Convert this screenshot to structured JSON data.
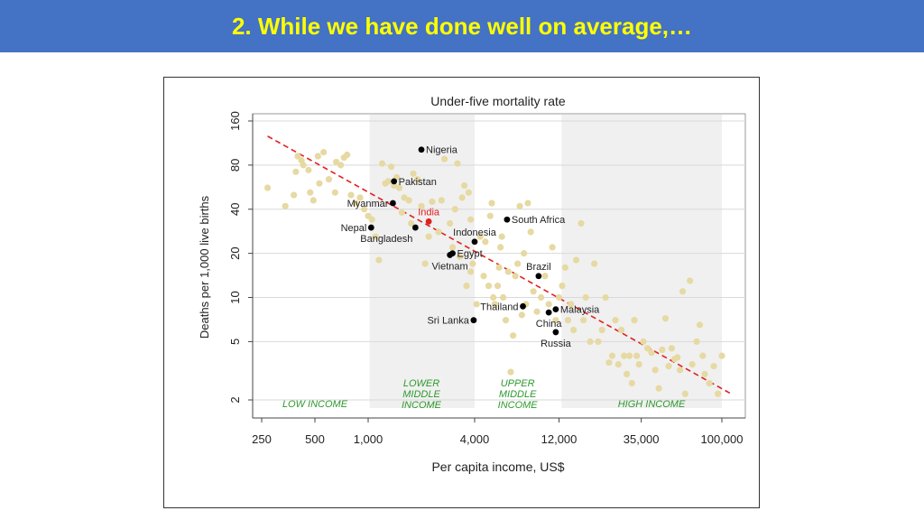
{
  "slide": {
    "title": "2.  While we have done well on average,…"
  },
  "chart_data": {
    "type": "scatter",
    "title": "Under-five mortality rate",
    "xlabel": "Per capita income, US$",
    "ylabel": "Deaths per 1,000 live births",
    "x_scale": "log",
    "y_scale": "log",
    "xlim": [
      220,
      130000
    ],
    "ylim": [
      1.8,
      175
    ],
    "x_ticks": [
      {
        "value": 250,
        "label": "250"
      },
      {
        "value": 500,
        "label": "500"
      },
      {
        "value": 1000,
        "label": "1,000"
      },
      {
        "value": 4000,
        "label": "4,000"
      },
      {
        "value": 12000,
        "label": "12,000"
      },
      {
        "value": 35000,
        "label": "35,000"
      },
      {
        "value": 100000,
        "label": "100,000"
      }
    ],
    "y_ticks": [
      {
        "value": 2,
        "label": "2"
      },
      {
        "value": 5,
        "label": "5"
      },
      {
        "value": 10,
        "label": "10"
      },
      {
        "value": 20,
        "label": "20"
      },
      {
        "value": 40,
        "label": "40"
      },
      {
        "value": 80,
        "label": "80"
      },
      {
        "value": 160,
        "label": "160"
      }
    ],
    "grid": true,
    "income_bands": [
      {
        "from": 1020,
        "to": 4000,
        "label_lines": [
          "LOWER",
          "MIDDLE",
          "INCOME"
        ]
      },
      {
        "from": 12400,
        "to": 100000,
        "label_lines": []
      }
    ],
    "band_labels": [
      {
        "text_lines": [
          "LOW INCOME"
        ],
        "x": 500,
        "y": 2
      },
      {
        "text_lines": [
          "LOWER",
          "MIDDLE",
          "INCOME"
        ],
        "x": 2000,
        "y": 2.3
      },
      {
        "text_lines": [
          "UPPER",
          "MIDDLE",
          "INCOME"
        ],
        "x": 7000,
        "y": 2.3
      },
      {
        "text_lines": [
          "HIGH INCOME"
        ],
        "x": 40000,
        "y": 2
      }
    ],
    "trend_line": {
      "from": {
        "x": 270,
        "y": 126
      },
      "to": {
        "x": 113000,
        "y": 2.2
      },
      "color": "#e0201e"
    },
    "highlighted": [
      {
        "name": "Nigeria",
        "x": 2000,
        "y": 102,
        "label_side": "right"
      },
      {
        "name": "Pakistan",
        "x": 1400,
        "y": 62,
        "label_side": "right"
      },
      {
        "name": "Myanmar",
        "x": 1380,
        "y": 44,
        "label_side": "left"
      },
      {
        "name": "India",
        "x": 2200,
        "y": 33,
        "label_side": "above",
        "color": "#e0201e"
      },
      {
        "name": "Nepal",
        "x": 1040,
        "y": 30,
        "label_side": "left"
      },
      {
        "name": "Bangladesh",
        "x": 1850,
        "y": 30,
        "label_side": "below-left"
      },
      {
        "name": "South Africa",
        "x": 6100,
        "y": 34,
        "label_side": "right"
      },
      {
        "name": "Indonesia",
        "x": 4000,
        "y": 24,
        "label_side": "above"
      },
      {
        "name": "Egypt",
        "x": 3000,
        "y": 20,
        "label_side": "right"
      },
      {
        "name": "Vietnam",
        "x": 2900,
        "y": 19.5,
        "label_side": "below"
      },
      {
        "name": "Brazil",
        "x": 9200,
        "y": 14,
        "label_side": "above"
      },
      {
        "name": "Thailand",
        "x": 7500,
        "y": 8.7,
        "label_side": "left"
      },
      {
        "name": "Malaysia",
        "x": 11500,
        "y": 8.3,
        "label_side": "right"
      },
      {
        "name": "Sri Lanka",
        "x": 3950,
        "y": 7,
        "label_side": "left"
      },
      {
        "name": "China",
        "x": 10500,
        "y": 7.9,
        "label_side": "below"
      },
      {
        "name": "Russia",
        "x": 11500,
        "y": 5.8,
        "label_side": "below"
      }
    ],
    "other_countries": [
      [
        270,
        56
      ],
      [
        340,
        42
      ],
      [
        380,
        50
      ],
      [
        390,
        72
      ],
      [
        400,
        92
      ],
      [
        420,
        86
      ],
      [
        430,
        80
      ],
      [
        460,
        74
      ],
      [
        470,
        52
      ],
      [
        490,
        46
      ],
      [
        520,
        92
      ],
      [
        530,
        60
      ],
      [
        560,
        98
      ],
      [
        600,
        64
      ],
      [
        650,
        52
      ],
      [
        660,
        84
      ],
      [
        700,
        80
      ],
      [
        730,
        90
      ],
      [
        760,
        94
      ],
      [
        800,
        50
      ],
      [
        850,
        44
      ],
      [
        900,
        48
      ],
      [
        950,
        40
      ],
      [
        1000,
        36
      ],
      [
        1050,
        34
      ],
      [
        1100,
        26
      ],
      [
        1150,
        18
      ],
      [
        1200,
        82
      ],
      [
        1250,
        60
      ],
      [
        1300,
        62
      ],
      [
        1350,
        78
      ],
      [
        1400,
        58
      ],
      [
        1450,
        66
      ],
      [
        1500,
        56
      ],
      [
        1550,
        38
      ],
      [
        1600,
        48
      ],
      [
        1700,
        46
      ],
      [
        1750,
        32
      ],
      [
        1800,
        70
      ],
      [
        1900,
        64
      ],
      [
        2000,
        42
      ],
      [
        2100,
        17
      ],
      [
        2200,
        26
      ],
      [
        2300,
        45
      ],
      [
        2500,
        28
      ],
      [
        2600,
        46
      ],
      [
        2700,
        88
      ],
      [
        2900,
        32
      ],
      [
        3000,
        22
      ],
      [
        3100,
        40
      ],
      [
        3200,
        82
      ],
      [
        3300,
        19
      ],
      [
        3400,
        48
      ],
      [
        3500,
        58
      ],
      [
        3600,
        12
      ],
      [
        3700,
        52
      ],
      [
        3800,
        15
      ],
      [
        3800,
        34
      ],
      [
        3900,
        17
      ],
      [
        4100,
        9
      ],
      [
        4300,
        26
      ],
      [
        4500,
        14
      ],
      [
        4600,
        24
      ],
      [
        4800,
        12
      ],
      [
        4900,
        36
      ],
      [
        5000,
        44
      ],
      [
        5100,
        10
      ],
      [
        5200,
        9
      ],
      [
        5400,
        12
      ],
      [
        5500,
        16
      ],
      [
        5600,
        22
      ],
      [
        5700,
        26
      ],
      [
        5800,
        10
      ],
      [
        6000,
        7
      ],
      [
        6200,
        15
      ],
      [
        6400,
        3.1
      ],
      [
        6600,
        5.5
      ],
      [
        6800,
        14
      ],
      [
        7000,
        17
      ],
      [
        7200,
        42
      ],
      [
        7400,
        7.6
      ],
      [
        7600,
        20
      ],
      [
        7800,
        9
      ],
      [
        8000,
        44
      ],
      [
        8300,
        28
      ],
      [
        8600,
        11
      ],
      [
        9000,
        8
      ],
      [
        9500,
        10
      ],
      [
        10000,
        14
      ],
      [
        10500,
        9
      ],
      [
        11000,
        22
      ],
      [
        11500,
        7
      ],
      [
        12000,
        10
      ],
      [
        12500,
        12
      ],
      [
        13000,
        16
      ],
      [
        13500,
        7
      ],
      [
        14000,
        9
      ],
      [
        14500,
        6
      ],
      [
        15000,
        18
      ],
      [
        16000,
        32
      ],
      [
        16500,
        7
      ],
      [
        17000,
        10
      ],
      [
        18000,
        5
      ],
      [
        19000,
        17
      ],
      [
        20000,
        5
      ],
      [
        21000,
        6
      ],
      [
        22000,
        10
      ],
      [
        23000,
        3.6
      ],
      [
        24000,
        4
      ],
      [
        25000,
        7
      ],
      [
        26000,
        3.5
      ],
      [
        27000,
        6
      ],
      [
        28000,
        4
      ],
      [
        29000,
        3
      ],
      [
        30000,
        4
      ],
      [
        31000,
        2.6
      ],
      [
        32000,
        7
      ],
      [
        33000,
        4
      ],
      [
        34000,
        3.5
      ],
      [
        36000,
        5
      ],
      [
        38000,
        4.5
      ],
      [
        40000,
        4.2
      ],
      [
        42000,
        3.2
      ],
      [
        44000,
        2.4
      ],
      [
        46000,
        4.4
      ],
      [
        48000,
        7.2
      ],
      [
        50000,
        3.4
      ],
      [
        52000,
        4.5
      ],
      [
        54000,
        3.8
      ],
      [
        56000,
        3.9
      ],
      [
        58000,
        3.2
      ],
      [
        60000,
        11
      ],
      [
        62000,
        2.2
      ],
      [
        66000,
        13
      ],
      [
        68000,
        3.5
      ],
      [
        72000,
        5
      ],
      [
        75000,
        6.5
      ],
      [
        78000,
        4
      ],
      [
        80000,
        3
      ],
      [
        85000,
        2.6
      ],
      [
        90000,
        3.4
      ],
      [
        95000,
        2.2
      ],
      [
        100000,
        4
      ]
    ]
  },
  "colors": {
    "title_bar": "#4472c4",
    "title_text": "#ffff00",
    "band_fill": "#f0f0f0",
    "grid": "#d9d9d9",
    "dot_other": "#e6d9a2",
    "dot_highlight": "#000000",
    "band_label": "#2e9a2e",
    "trend": "#e0201e"
  }
}
